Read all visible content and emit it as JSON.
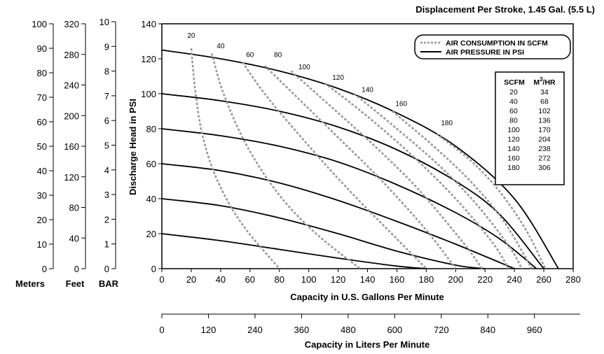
{
  "chart_data": {
    "type": "line",
    "title": "Displacement Per Stroke, 1.45 Gal. (5.5 L)",
    "xlabel": "Capacity in U.S. Gallons Per Minute",
    "xlabel2": "Capacity in Liters Per Minute",
    "ylabel": "Discharge Head in PSI",
    "xlim": [
      0,
      280
    ],
    "ylim": [
      0,
      140
    ],
    "x_ticks": [
      0,
      20,
      40,
      60,
      80,
      100,
      120,
      140,
      160,
      180,
      200,
      220,
      240,
      260,
      280
    ],
    "y_ticks": [
      0,
      20,
      40,
      60,
      80,
      100,
      120,
      140
    ],
    "liters_ticks": [
      0,
      120,
      240,
      360,
      480,
      600,
      720,
      840,
      960
    ],
    "secondary_axes": [
      {
        "label": "Meters",
        "ticks": [
          0,
          10,
          20,
          30,
          40,
          50,
          60,
          70,
          80,
          90,
          100
        ]
      },
      {
        "label": "Feet",
        "ticks": [
          0,
          40,
          80,
          120,
          160,
          200,
          240,
          280,
          320
        ]
      },
      {
        "label": "BAR",
        "ticks": [
          0,
          1,
          2,
          3,
          4,
          5,
          6,
          7,
          8,
          9,
          10
        ]
      }
    ],
    "legend": {
      "position": "top-right",
      "entries": [
        {
          "label": "AIR CONSUMPTION IN SCFM",
          "style": "dashed",
          "color": "#999999"
        },
        {
          "label": "AIR PRESSURE IN PSI",
          "style": "solid",
          "color": "#000000"
        }
      ]
    },
    "conversion_table": {
      "headers": [
        "SCFM",
        "M3/HR"
      ],
      "rows": [
        [
          "20",
          "34"
        ],
        [
          "40",
          "68"
        ],
        [
          "60",
          "102"
        ],
        [
          "80",
          "136"
        ],
        [
          "100",
          "170"
        ],
        [
          "120",
          "204"
        ],
        [
          "140",
          "238"
        ],
        [
          "160",
          "272"
        ],
        [
          "180",
          "306"
        ]
      ]
    },
    "pressure_series": [
      {
        "psi": 20,
        "points": [
          [
            0,
            20
          ],
          [
            40,
            16
          ],
          [
            80,
            11
          ],
          [
            120,
            6
          ],
          [
            160,
            1.5
          ],
          [
            180,
            0
          ]
        ]
      },
      {
        "psi": 40,
        "points": [
          [
            0,
            40
          ],
          [
            40,
            36
          ],
          [
            80,
            29
          ],
          [
            120,
            20
          ],
          [
            160,
            10
          ],
          [
            200,
            2
          ],
          [
            220,
            0
          ]
        ]
      },
      {
        "psi": 60,
        "points": [
          [
            0,
            60
          ],
          [
            40,
            56
          ],
          [
            80,
            49
          ],
          [
            120,
            39
          ],
          [
            160,
            27
          ],
          [
            200,
            14
          ],
          [
            240,
            0
          ]
        ]
      },
      {
        "psi": 80,
        "points": [
          [
            0,
            80
          ],
          [
            40,
            76
          ],
          [
            80,
            70
          ],
          [
            120,
            61
          ],
          [
            160,
            48
          ],
          [
            200,
            32
          ],
          [
            230,
            17
          ],
          [
            255,
            0
          ]
        ]
      },
      {
        "psi": 100,
        "points": [
          [
            0,
            100
          ],
          [
            40,
            96
          ],
          [
            80,
            90
          ],
          [
            120,
            81
          ],
          [
            160,
            68
          ],
          [
            200,
            50
          ],
          [
            230,
            31
          ],
          [
            260,
            0
          ]
        ]
      },
      {
        "psi": 120,
        "points": [
          [
            0,
            125
          ],
          [
            40,
            120
          ],
          [
            80,
            113
          ],
          [
            120,
            103
          ],
          [
            160,
            89
          ],
          [
            200,
            70
          ],
          [
            240,
            40
          ],
          [
            270,
            0
          ]
        ]
      }
    ],
    "scfm_series": [
      {
        "label": "20",
        "points": [
          [
            20,
            126
          ],
          [
            23,
            100
          ],
          [
            28,
            75
          ],
          [
            38,
            50
          ],
          [
            55,
            25
          ],
          [
            80,
            0
          ]
        ],
        "label_at": [
          20,
          132
        ]
      },
      {
        "label": "40",
        "points": [
          [
            34,
            123
          ],
          [
            42,
            100
          ],
          [
            58,
            70
          ],
          [
            80,
            42
          ],
          [
            105,
            20
          ],
          [
            135,
            0
          ]
        ],
        "label_at": [
          40,
          126
        ]
      },
      {
        "label": "60",
        "points": [
          [
            55,
            118
          ],
          [
            70,
            100
          ],
          [
            95,
            75
          ],
          [
            125,
            47
          ],
          [
            160,
            17
          ],
          [
            180,
            0
          ]
        ],
        "label_at": [
          60,
          121
        ]
      },
      {
        "label": "80",
        "points": [
          [
            70,
            116
          ],
          [
            92,
            98
          ],
          [
            120,
            75
          ],
          [
            150,
            50
          ],
          [
            180,
            22
          ],
          [
            200,
            0
          ]
        ],
        "label_at": [
          79,
          121
        ]
      },
      {
        "label": "100",
        "points": [
          [
            88,
            113
          ],
          [
            112,
            95
          ],
          [
            145,
            70
          ],
          [
            175,
            45
          ],
          [
            205,
            15
          ],
          [
            218,
            0
          ]
        ],
        "label_at": [
          97,
          114
        ]
      },
      {
        "label": "120",
        "points": [
          [
            111,
            106
          ],
          [
            140,
            87
          ],
          [
            170,
            65
          ],
          [
            200,
            40
          ],
          [
            225,
            15
          ],
          [
            236,
            0
          ]
        ],
        "label_at": [
          120,
          108
        ]
      },
      {
        "label": "140",
        "points": [
          [
            131,
            100
          ],
          [
            160,
            80
          ],
          [
            190,
            58
          ],
          [
            215,
            36
          ],
          [
            237,
            12
          ],
          [
            245,
            0
          ]
        ],
        "label_at": [
          140,
          101
        ]
      },
      {
        "label": "160",
        "points": [
          [
            157,
            90
          ],
          [
            185,
            70
          ],
          [
            210,
            50
          ],
          [
            232,
            28
          ],
          [
            252,
            0
          ]
        ],
        "label_at": [
          163,
          93
        ]
      },
      {
        "label": "180",
        "points": [
          [
            187,
            77
          ],
          [
            210,
            62
          ],
          [
            230,
            44
          ],
          [
            248,
            22
          ],
          [
            261,
            0
          ]
        ],
        "label_at": [
          194,
          82
        ]
      }
    ]
  }
}
